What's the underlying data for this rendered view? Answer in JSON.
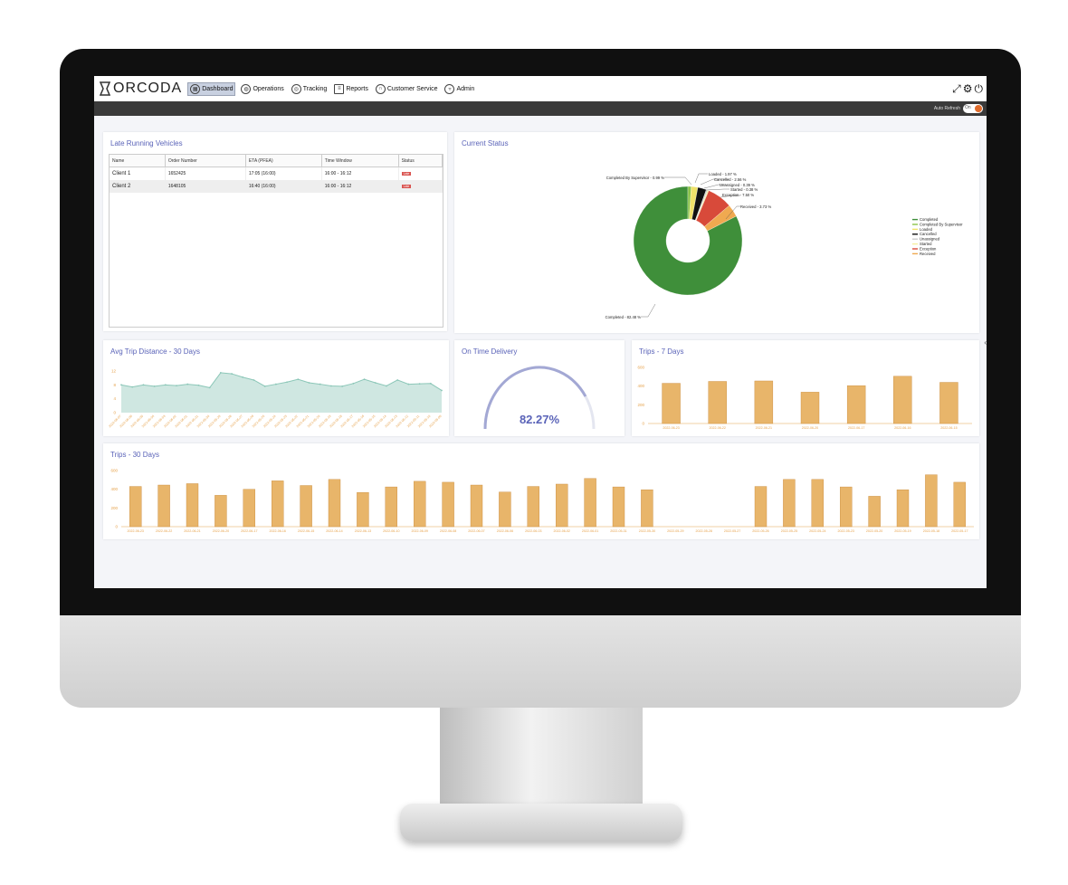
{
  "app": {
    "logo": "ORCODA",
    "nav": [
      {
        "label": "Dashboard",
        "icon": "dashboard-icon",
        "active": true
      },
      {
        "label": "Operations",
        "icon": "globe-icon"
      },
      {
        "label": "Tracking",
        "icon": "tracking-icon"
      },
      {
        "label": "Reports",
        "icon": "report-icon"
      },
      {
        "label": "Customer Service",
        "icon": "headset-icon"
      },
      {
        "label": "Admin",
        "icon": "shield-icon"
      }
    ],
    "top_icons": [
      "fullscreen-icon",
      "gear-icon",
      "power-icon"
    ],
    "auto_refresh": {
      "label": "Auto Refresh",
      "toggle": "On"
    }
  },
  "late_running": {
    "title": "Late Running Vehicles",
    "columns": [
      "Name",
      "Order Number",
      "ETA (PFEA)",
      "Time Window",
      "Status"
    ],
    "rows": [
      {
        "name": "Client 1",
        "order": "1652425",
        "eta": "17:05 (16:00)",
        "window": "16:00 - 16:12",
        "status": "Late"
      },
      {
        "name": "Client 2",
        "order": "1648105",
        "eta": "16:40 (16:00)",
        "window": "16:00 - 16:12",
        "status": "Late"
      }
    ]
  },
  "current_status": {
    "title": "Current Status",
    "labels": {
      "completed_by_supervisor": "Completed By Supervisor - 0.99 %",
      "loaded": "Loaded - 1.97 %",
      "cancelled": "Cancelled - 2.56 %",
      "unassigned": "Unassigned - 0.39 %",
      "started": "Started - 0.38 %",
      "exception": "Exception - 7.50 %",
      "received": "Received - 3.73 %",
      "completed": "Completed - 82.48 %"
    },
    "legend": [
      "Completed",
      "Completed By Supervisor",
      "Loaded",
      "Cancelled",
      "Unassigned",
      "Started",
      "Exception",
      "Received"
    ]
  },
  "avg_trip": {
    "title": "Avg Trip Distance - 30 Days"
  },
  "on_time": {
    "title": "On Time Delivery",
    "value": "82.27%",
    "fraction": 0.8227
  },
  "trips7": {
    "title": "Trips - 7 Days"
  },
  "trips30": {
    "title": "Trips - 30 Days"
  },
  "colors": {
    "bar": "#e8b56a",
    "area": "#8cc7b8",
    "accent": "#5a63b8",
    "completed": "#3f8f3a"
  },
  "chart_data": [
    {
      "type": "pie",
      "chart": "current_status",
      "slices": [
        {
          "name": "Completed",
          "value": 82.48,
          "color": "#3f8f3a"
        },
        {
          "name": "Completed By Supervisor",
          "value": 0.99,
          "color": "#8bc34a"
        },
        {
          "name": "Loaded",
          "value": 1.97,
          "color": "#f0e26a"
        },
        {
          "name": "Cancelled",
          "value": 2.56,
          "color": "#111111"
        },
        {
          "name": "Unassigned",
          "value": 0.39,
          "color": "#cccccc"
        },
        {
          "name": "Started",
          "value": 0.38,
          "color": "#f6f0a0"
        },
        {
          "name": "Exception",
          "value": 7.5,
          "color": "#d84a3a"
        },
        {
          "name": "Received",
          "value": 3.73,
          "color": "#f0a950"
        }
      ]
    },
    {
      "type": "area",
      "chart": "avg_trip",
      "y_ticks": [
        "12",
        "8",
        "4",
        "0"
      ],
      "ylim": [
        0,
        12
      ],
      "values": [
        8,
        7.4,
        8,
        7.6,
        8,
        7.8,
        8.2,
        7.9,
        7.2,
        11.5,
        11.2,
        10.2,
        9.4,
        7.6,
        8.2,
        8.8,
        9.6,
        8.6,
        8.2,
        7.7,
        7.6,
        8.4,
        9.6,
        8.6,
        7.7,
        9.4,
        8.2,
        8.3,
        8.4,
        6.4
      ],
      "x": [
        "2022-06-07",
        "2022-06-06",
        "2022-06-05",
        "2022-06-04",
        "2022-06-03",
        "2022-06-02",
        "2022-06-01",
        "2022-05-31",
        "2022-05-30",
        "2022-05-29",
        "2022-05-28",
        "2022-05-27",
        "2022-05-26",
        "2022-05-25",
        "2022-05-24",
        "2022-05-23",
        "2022-05-22",
        "2022-05-21",
        "2022-05-20",
        "2022-05-19",
        "2022-05-18",
        "2022-05-17",
        "2022-05-16",
        "2022-05-15",
        "2022-05-14",
        "2022-05-13",
        "2022-05-12",
        "2022-05-11",
        "2022-05-10",
        "2022-05-09"
      ]
    },
    {
      "type": "bar",
      "chart": "trips7",
      "y_ticks": [
        "600",
        "400",
        "200",
        "0"
      ],
      "ylim": [
        0,
        600
      ],
      "categories": [
        "2022-06-23",
        "2022-06-22",
        "2022-06-21",
        "2022-06-20",
        "2022-06-17",
        "2022-06-16",
        "2022-06-15"
      ],
      "values": [
        430,
        450,
        455,
        335,
        405,
        505,
        440
      ]
    },
    {
      "type": "bar",
      "chart": "trips30",
      "y_ticks": [
        "600",
        "400",
        "200",
        "0"
      ],
      "ylim": [
        0,
        600
      ],
      "categories": [
        "2022-06-23",
        "2022-06-22",
        "2022-06-21",
        "2022-06-20",
        "2022-06-17",
        "2022-06-16",
        "2022-06-15",
        "2022-06-14",
        "2022-06-13",
        "2022-06-10",
        "2022-06-09",
        "2022-06-08",
        "2022-06-07",
        "2022-06-06",
        "2022-06-03",
        "2022-06-02",
        "2022-06-01",
        "2022-05-31",
        "2022-05-30",
        "2022-05-29",
        "2022-05-28",
        "2022-05-27",
        "2022-05-26",
        "2022-05-25",
        "2022-05-24",
        "2022-05-23",
        "2022-05-20",
        "2022-05-19",
        "2022-05-18",
        "2022-05-17"
      ],
      "values": [
        430,
        445,
        460,
        335,
        400,
        490,
        440,
        505,
        365,
        425,
        485,
        475,
        445,
        370,
        430,
        455,
        515,
        425,
        395,
        0,
        0,
        0,
        430,
        505,
        505,
        425,
        325,
        395,
        555,
        475
      ]
    }
  ]
}
